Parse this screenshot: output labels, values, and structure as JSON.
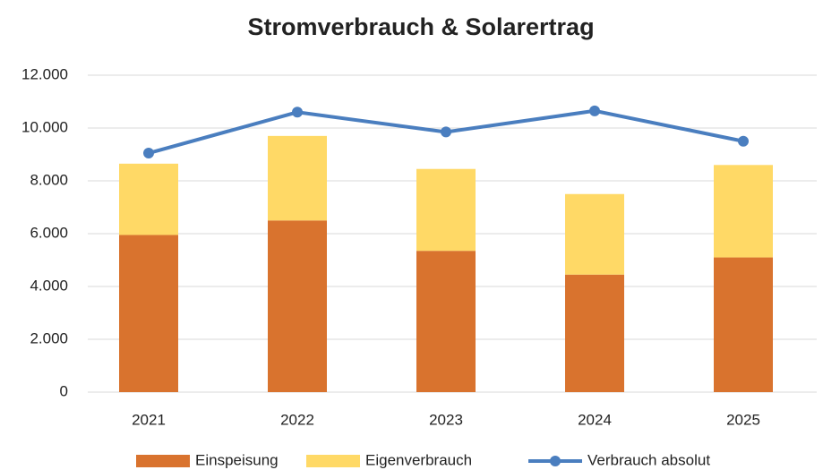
{
  "chart_data": {
    "type": "bar",
    "stacked": true,
    "title": "Stromverbrauch & Solarertrag",
    "categories": [
      "2021",
      "2022",
      "2023",
      "2024",
      "2025"
    ],
    "series": [
      {
        "name": "Einspeisung",
        "type": "bar",
        "color": "#d9732e",
        "values": [
          5950,
          6500,
          5350,
          4450,
          5100
        ]
      },
      {
        "name": "Eigenverbrauch",
        "type": "bar",
        "color": "#ffd966",
        "values": [
          2700,
          3200,
          3100,
          3050,
          3500
        ]
      },
      {
        "name": "Verbrauch absolut",
        "type": "line",
        "color": "#4a7ebf",
        "values": [
          9050,
          10600,
          9850,
          10650,
          9500
        ]
      }
    ],
    "ylim": [
      0,
      12000
    ],
    "yticks": [
      0,
      {
        "value": 2000,
        "label": "2.000"
      },
      {
        "value": 4000,
        "label": "4.000"
      },
      {
        "value": 6000,
        "label": "6.000"
      },
      {
        "value": 8000,
        "label": "8.000"
      },
      {
        "value": 10000,
        "label": "10.000"
      },
      {
        "value": 12000,
        "label": "12.000"
      }
    ],
    "grid": true,
    "legend": "bottom"
  }
}
